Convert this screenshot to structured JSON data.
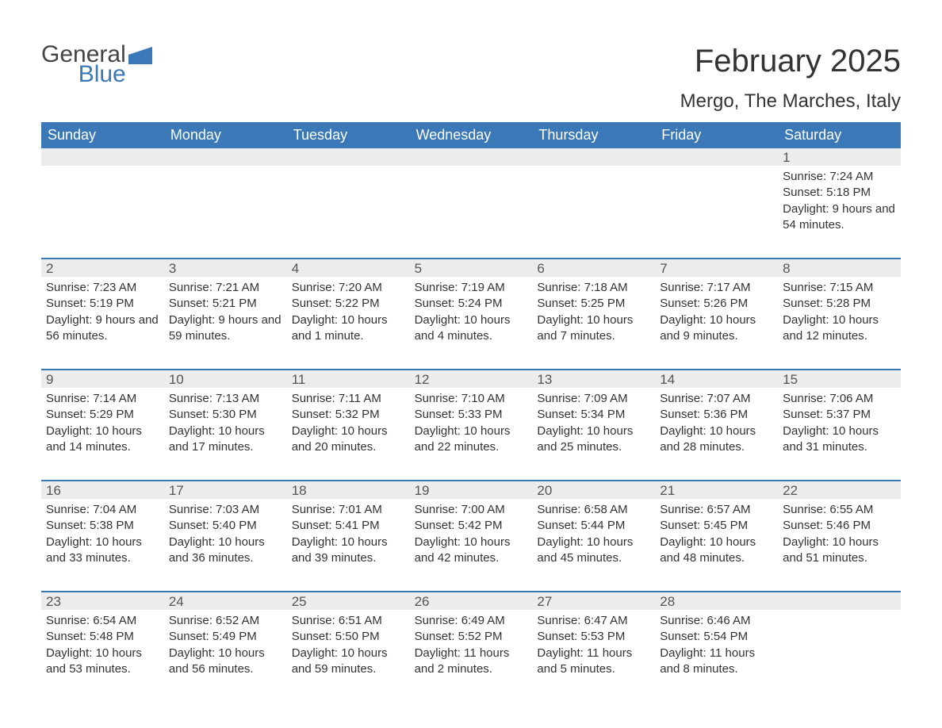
{
  "brand": {
    "line1": "General",
    "line2": "Blue",
    "color": "#3a78b8"
  },
  "title": "February 2025",
  "location": "Mergo, The Marches, Italy",
  "colors": {
    "header_bg": "#3a78b8",
    "header_text": "#ffffff",
    "daynum_bg": "#ececec",
    "body_text": "#333333",
    "rule": "#3a78b8"
  },
  "fonts": {
    "title_size": 40,
    "location_size": 24,
    "weekday_size": 18,
    "daynum_size": 17,
    "body_size": 15
  },
  "layout": {
    "columns": 7,
    "rows": 5,
    "leading_blanks": 6
  },
  "weekdays": [
    "Sunday",
    "Monday",
    "Tuesday",
    "Wednesday",
    "Thursday",
    "Friday",
    "Saturday"
  ],
  "days": [
    {
      "n": 1,
      "sunrise": "7:24 AM",
      "sunset": "5:18 PM",
      "daylight": "9 hours and 54 minutes."
    },
    {
      "n": 2,
      "sunrise": "7:23 AM",
      "sunset": "5:19 PM",
      "daylight": "9 hours and 56 minutes."
    },
    {
      "n": 3,
      "sunrise": "7:21 AM",
      "sunset": "5:21 PM",
      "daylight": "9 hours and 59 minutes."
    },
    {
      "n": 4,
      "sunrise": "7:20 AM",
      "sunset": "5:22 PM",
      "daylight": "10 hours and 1 minute."
    },
    {
      "n": 5,
      "sunrise": "7:19 AM",
      "sunset": "5:24 PM",
      "daylight": "10 hours and 4 minutes."
    },
    {
      "n": 6,
      "sunrise": "7:18 AM",
      "sunset": "5:25 PM",
      "daylight": "10 hours and 7 minutes."
    },
    {
      "n": 7,
      "sunrise": "7:17 AM",
      "sunset": "5:26 PM",
      "daylight": "10 hours and 9 minutes."
    },
    {
      "n": 8,
      "sunrise": "7:15 AM",
      "sunset": "5:28 PM",
      "daylight": "10 hours and 12 minutes."
    },
    {
      "n": 9,
      "sunrise": "7:14 AM",
      "sunset": "5:29 PM",
      "daylight": "10 hours and 14 minutes."
    },
    {
      "n": 10,
      "sunrise": "7:13 AM",
      "sunset": "5:30 PM",
      "daylight": "10 hours and 17 minutes."
    },
    {
      "n": 11,
      "sunrise": "7:11 AM",
      "sunset": "5:32 PM",
      "daylight": "10 hours and 20 minutes."
    },
    {
      "n": 12,
      "sunrise": "7:10 AM",
      "sunset": "5:33 PM",
      "daylight": "10 hours and 22 minutes."
    },
    {
      "n": 13,
      "sunrise": "7:09 AM",
      "sunset": "5:34 PM",
      "daylight": "10 hours and 25 minutes."
    },
    {
      "n": 14,
      "sunrise": "7:07 AM",
      "sunset": "5:36 PM",
      "daylight": "10 hours and 28 minutes."
    },
    {
      "n": 15,
      "sunrise": "7:06 AM",
      "sunset": "5:37 PM",
      "daylight": "10 hours and 31 minutes."
    },
    {
      "n": 16,
      "sunrise": "7:04 AM",
      "sunset": "5:38 PM",
      "daylight": "10 hours and 33 minutes."
    },
    {
      "n": 17,
      "sunrise": "7:03 AM",
      "sunset": "5:40 PM",
      "daylight": "10 hours and 36 minutes."
    },
    {
      "n": 18,
      "sunrise": "7:01 AM",
      "sunset": "5:41 PM",
      "daylight": "10 hours and 39 minutes."
    },
    {
      "n": 19,
      "sunrise": "7:00 AM",
      "sunset": "5:42 PM",
      "daylight": "10 hours and 42 minutes."
    },
    {
      "n": 20,
      "sunrise": "6:58 AM",
      "sunset": "5:44 PM",
      "daylight": "10 hours and 45 minutes."
    },
    {
      "n": 21,
      "sunrise": "6:57 AM",
      "sunset": "5:45 PM",
      "daylight": "10 hours and 48 minutes."
    },
    {
      "n": 22,
      "sunrise": "6:55 AM",
      "sunset": "5:46 PM",
      "daylight": "10 hours and 51 minutes."
    },
    {
      "n": 23,
      "sunrise": "6:54 AM",
      "sunset": "5:48 PM",
      "daylight": "10 hours and 53 minutes."
    },
    {
      "n": 24,
      "sunrise": "6:52 AM",
      "sunset": "5:49 PM",
      "daylight": "10 hours and 56 minutes."
    },
    {
      "n": 25,
      "sunrise": "6:51 AM",
      "sunset": "5:50 PM",
      "daylight": "10 hours and 59 minutes."
    },
    {
      "n": 26,
      "sunrise": "6:49 AM",
      "sunset": "5:52 PM",
      "daylight": "11 hours and 2 minutes."
    },
    {
      "n": 27,
      "sunrise": "6:47 AM",
      "sunset": "5:53 PM",
      "daylight": "11 hours and 5 minutes."
    },
    {
      "n": 28,
      "sunrise": "6:46 AM",
      "sunset": "5:54 PM",
      "daylight": "11 hours and 8 minutes."
    }
  ],
  "labels": {
    "sunrise": "Sunrise:",
    "sunset": "Sunset:",
    "daylight": "Daylight:"
  }
}
